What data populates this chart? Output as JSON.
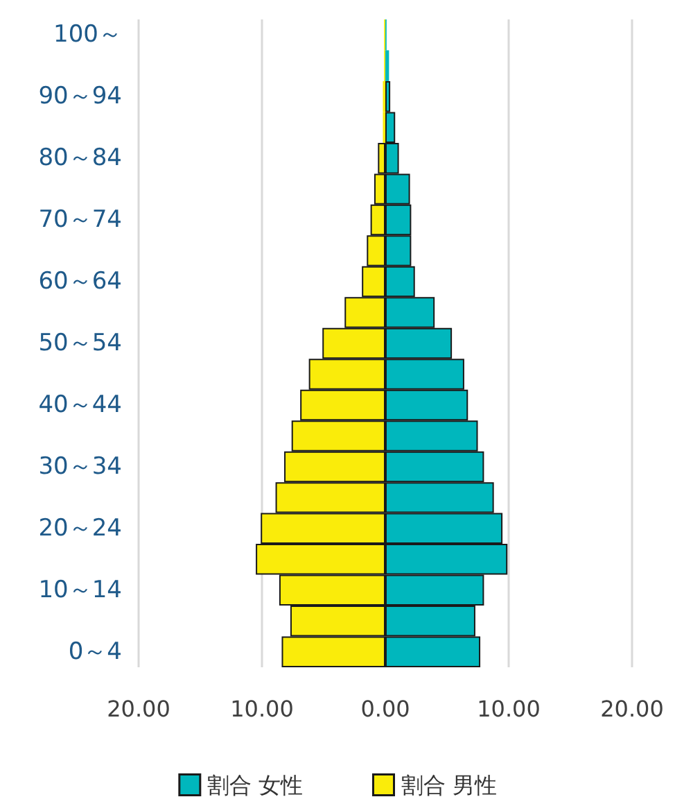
{
  "chart_data": {
    "type": "bar",
    "orientation": "horizontal",
    "stacked": true,
    "categories": [
      "100～",
      null,
      "90～94",
      null,
      "80～84",
      null,
      "70～74",
      null,
      "60～64",
      null,
      "50～54",
      null,
      "40～44",
      null,
      "30～34",
      null,
      "20～24",
      null,
      "10～14",
      null,
      "0～4"
    ],
    "series": [
      {
        "name": "割合 女性",
        "color": "#00b7bd",
        "values": [
          0.1,
          0.3,
          0.4,
          0.8,
          1.1,
          2.0,
          2.1,
          2.1,
          2.4,
          4.0,
          5.4,
          6.4,
          6.7,
          7.5,
          8.0,
          8.8,
          9.5,
          9.9,
          8.0,
          7.3,
          7.7
        ]
      },
      {
        "name": "割合 男性",
        "color": "#faec0a",
        "values": [
          -0.1,
          -0.1,
          -0.2,
          -0.2,
          -0.6,
          -0.9,
          -1.2,
          -1.5,
          -1.9,
          -3.3,
          -5.1,
          -6.2,
          -6.9,
          -7.6,
          -8.2,
          -8.9,
          -10.1,
          -10.5,
          -8.6,
          -7.7,
          -8.4
        ]
      }
    ],
    "xlim": [
      -20,
      20
    ],
    "xticks": [
      {
        "value": -20,
        "label": "20.00"
      },
      {
        "value": -10,
        "label": "10.00"
      },
      {
        "value": 0,
        "label": "0.00"
      },
      {
        "value": 10,
        "label": "10.00"
      },
      {
        "value": 20,
        "label": "20.00"
      }
    ],
    "grid": "x",
    "legend": "bottom"
  }
}
